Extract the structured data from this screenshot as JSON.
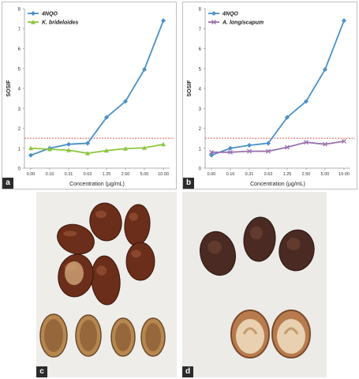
{
  "chart_data": [
    {
      "type": "line",
      "panel_label": "a",
      "categories": [
        "0.00",
        "0.16",
        "0.31",
        "0.63",
        "1.25",
        "2.50",
        "5.00",
        "10.00"
      ],
      "series": [
        {
          "name": "4NQO",
          "color": "#4a90c8",
          "marker": "diamond",
          "values": [
            0.65,
            1.0,
            1.2,
            1.25,
            2.55,
            3.35,
            4.95,
            7.4
          ]
        },
        {
          "name": "K. brideloides",
          "color": "#8dc63f",
          "marker": "triangle",
          "values": [
            1.0,
            0.95,
            0.9,
            0.75,
            0.88,
            0.98,
            1.02,
            1.2
          ]
        }
      ],
      "threshold": {
        "value": 1.5,
        "color": "#d9534f",
        "style": "dotted"
      },
      "xlabel": "Concentration (µg/mL)",
      "ylabel": "SOSIF",
      "ylim": [
        0,
        8
      ],
      "yticks": [
        "0",
        "1",
        "2",
        "3",
        "4",
        "5",
        "6",
        "7",
        "8"
      ],
      "legend_position": "top-left",
      "grid": false
    },
    {
      "type": "line",
      "panel_label": "b",
      "categories": [
        "0.00",
        "0.16",
        "0.31",
        "0.63",
        "1.25",
        "2.50",
        "5.00",
        "10.00"
      ],
      "series": [
        {
          "name": "4NQO",
          "color": "#4a90c8",
          "marker": "diamond",
          "values": [
            0.65,
            1.0,
            1.15,
            1.25,
            2.55,
            3.35,
            4.95,
            7.4
          ]
        },
        {
          "name": "A. longiscapum",
          "color": "#9b72b0",
          "marker": "x",
          "values": [
            0.8,
            0.8,
            0.85,
            0.85,
            1.05,
            1.3,
            1.2,
            1.35
          ]
        }
      ],
      "threshold": {
        "value": 1.5,
        "color": "#d9534f",
        "style": "dotted"
      },
      "xlabel": "Concentration (µg/mL)",
      "ylabel": "SOSIF",
      "ylim": [
        0,
        8
      ],
      "yticks": [
        "0",
        "1",
        "2",
        "3",
        "4",
        "5",
        "6",
        "7",
        "8"
      ],
      "legend_position": "top-left",
      "grid": false
    }
  ],
  "photos": {
    "c": {
      "label": "c",
      "background": "#efedea",
      "seed_color": "#6b2e1a",
      "shell_color": "#b6874f"
    },
    "d": {
      "label": "d",
      "background": "#ecebe8",
      "seed_color": "#4a2a22",
      "shell_color": "#b77b4e"
    }
  }
}
